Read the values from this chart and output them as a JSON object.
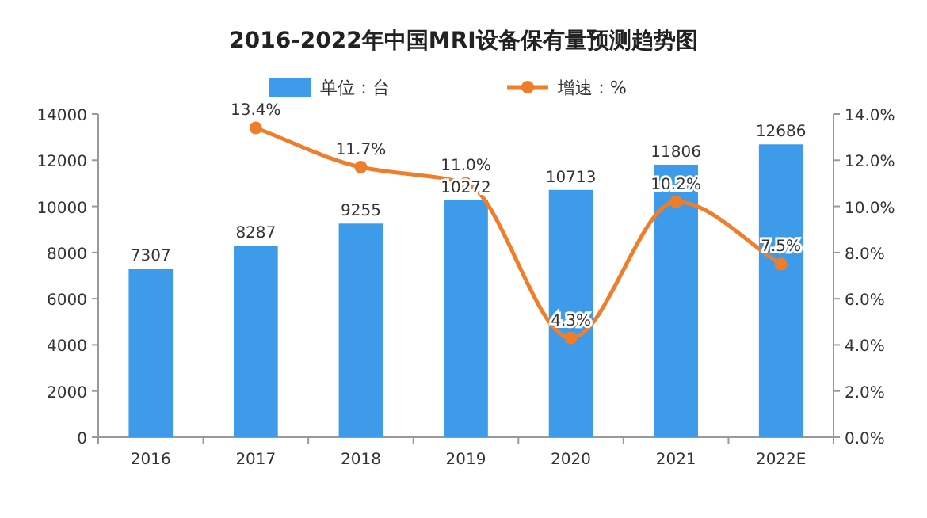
{
  "chart_data": {
    "type": "bar",
    "title": "2016-2022年中国MRI设备保有量预测趋势图",
    "categories": [
      "2016",
      "2017",
      "2018",
      "2019",
      "2020",
      "2021",
      "2022E"
    ],
    "series": [
      {
        "name": "单位：台",
        "color": "#3d9be9",
        "values": [
          7307,
          8287,
          9255,
          10272,
          10713,
          11806,
          12686
        ],
        "value_labels": [
          "7307",
          "8287",
          "9255",
          "10272",
          "10713",
          "11806",
          "12686"
        ]
      },
      {
        "name": "增速：%",
        "type": "line",
        "axis": "y2",
        "color": "#f07d2a",
        "values": [
          null,
          13.4,
          11.7,
          11.0,
          4.3,
          10.2,
          7.5
        ],
        "value_labels": [
          null,
          "13.4%",
          "11.7%",
          "11.0%",
          "4.3%",
          "10.2%",
          "7.5%"
        ]
      }
    ],
    "ylim": [
      0,
      14000
    ],
    "yticks": [
      0,
      2000,
      4000,
      6000,
      8000,
      10000,
      12000,
      14000
    ],
    "y2lim": [
      0,
      14
    ],
    "y2ticks": [
      {
        "value": 0,
        "label": "0.0%"
      },
      {
        "value": 2,
        "label": "2.0%"
      },
      {
        "value": 4,
        "label": "4.0%"
      },
      {
        "value": 6,
        "label": "6.0%"
      },
      {
        "value": 8,
        "label": "8.0%"
      },
      {
        "value": 10,
        "label": "10.0%"
      },
      {
        "value": 12,
        "label": "12.0%"
      },
      {
        "value": 14,
        "label": "14.0%"
      }
    ],
    "marker": "circle",
    "legend": "top",
    "grid": false
  }
}
